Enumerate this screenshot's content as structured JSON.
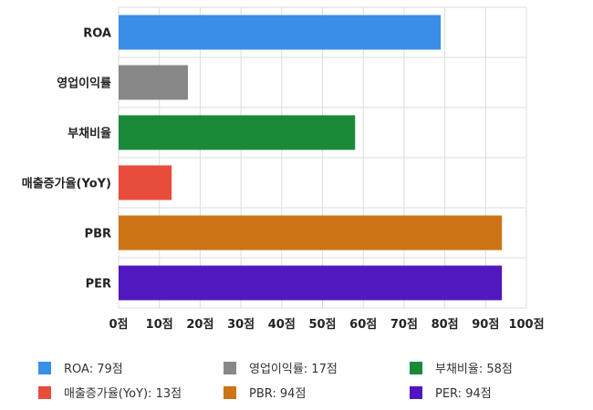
{
  "chart_data": {
    "type": "bar",
    "orientation": "horizontal",
    "categories": [
      "ROA",
      "영업이익률",
      "부채비율",
      "매출증가율(YoY)",
      "PBR",
      "PER"
    ],
    "values": [
      79,
      17,
      58,
      13,
      94,
      94
    ],
    "colors": [
      "#3b8ee8",
      "#888888",
      "#1a8a38",
      "#e84c3a",
      "#cc7416",
      "#5018be"
    ],
    "xlim": [
      0,
      100
    ],
    "xticks": [
      0,
      10,
      20,
      30,
      40,
      50,
      60,
      70,
      80,
      90,
      100
    ],
    "tick_suffix": "점",
    "grid": true,
    "legend_position": "bottom",
    "legend": [
      "ROA: 79점",
      "영업이익률: 17점",
      "부채비율: 58점",
      "매출증가율(YoY): 13점",
      "PBR: 94점",
      "PER: 94점"
    ]
  }
}
